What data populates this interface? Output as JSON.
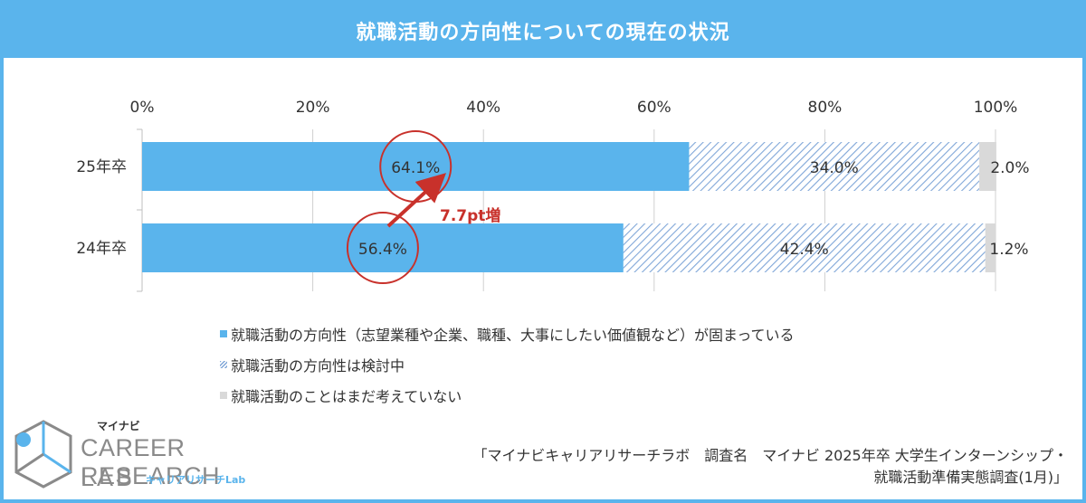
{
  "title": "就職活動の方向性についての現在の状況",
  "chart_data": {
    "type": "bar",
    "orientation": "horizontal",
    "stacked": true,
    "categories": [
      "25年卒",
      "24年卒"
    ],
    "series": [
      {
        "name": "就職活動の方向性（志望業種や企業、職種、大事にしたい価値観など）が固まっている",
        "values": [
          64.1,
          56.4
        ],
        "color": "#5ab4ec",
        "pattern": "solid"
      },
      {
        "name": "就職活動の方向性は検討中",
        "values": [
          34.0,
          42.4
        ],
        "color": "#7fa6d8",
        "pattern": "hatch"
      },
      {
        "name": "就職活動のことはまだ考えていない",
        "values": [
          2.0,
          1.2
        ],
        "color": "#d9d9d9",
        "pattern": "solid"
      }
    ],
    "value_labels": [
      [
        "64.1%",
        "34.0%",
        "2.0%"
      ],
      [
        "56.4%",
        "42.4%",
        "1.2%"
      ]
    ],
    "xlim": [
      0,
      100
    ],
    "x_ticks": [
      "0%",
      "20%",
      "40%",
      "60%",
      "80%",
      "100%"
    ],
    "legend_position": "bottom",
    "annotation": {
      "text": "7.7pt増",
      "color": "#c8312b"
    }
  },
  "legend": [
    "就職活動の方向性（志望業種や企業、職種、大事にしたい価値観など）が固まっている",
    "就職活動の方向性は検討中",
    "就職活動のことはまだ考えていない"
  ],
  "logo": {
    "mynavi": "マイナビ",
    "line1": "CAREER RESEARCH",
    "line2": "LAB",
    "sub": "キャリアリサーチLab"
  },
  "source": {
    "line1": "「マイナビキャリアリサーチラボ　調査名　マイナビ 2025年卒 大学生インターンシップ・",
    "line2": "就職活動準備実態調査(1月)」"
  }
}
